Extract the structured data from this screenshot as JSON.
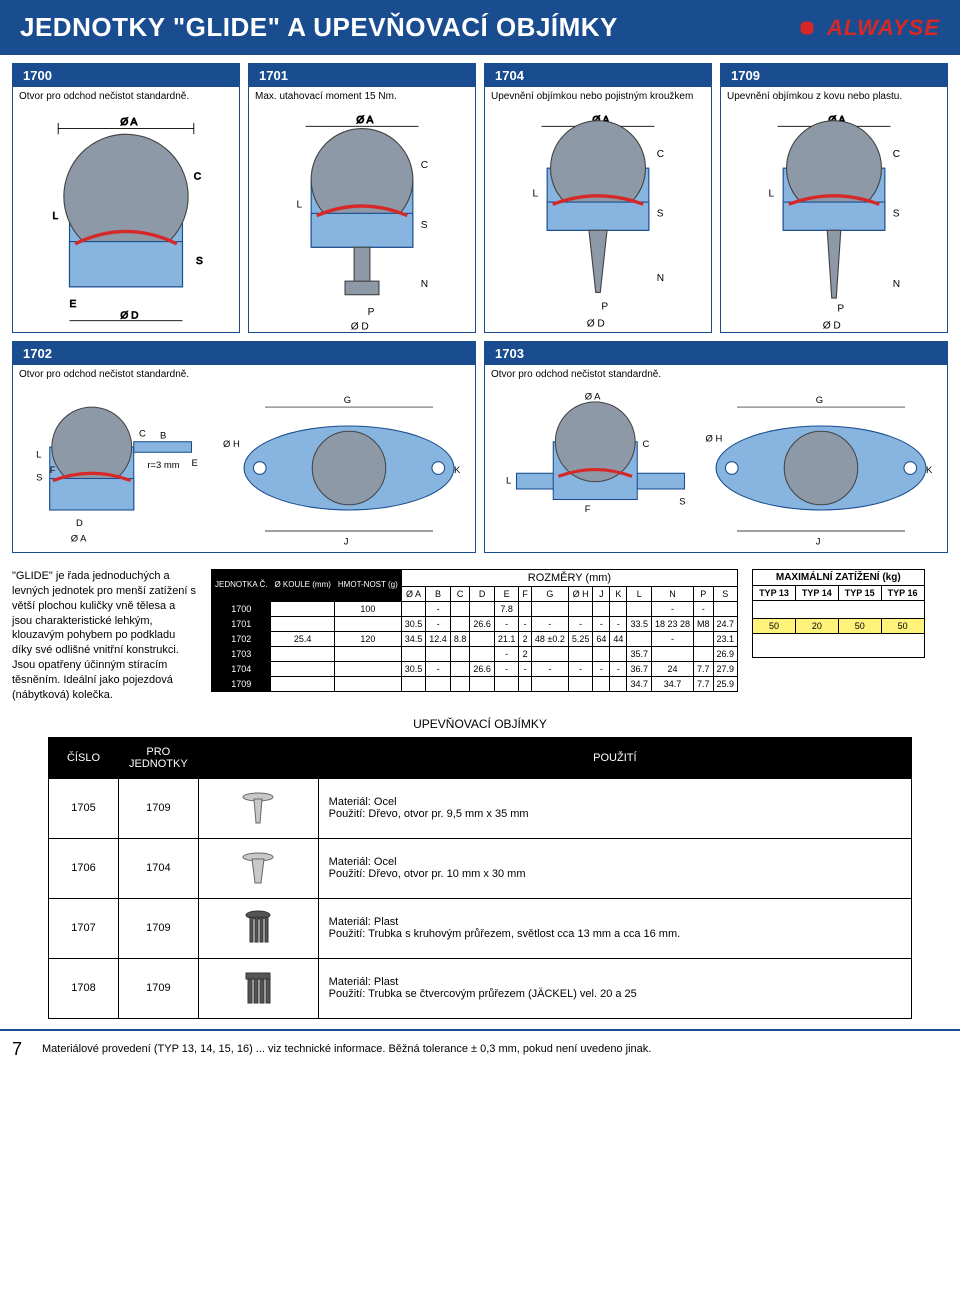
{
  "header": {
    "title": "JEDNOTKY \"GLIDE\" A UPEVŇOVACÍ OBJÍMKY",
    "brand": "ALWAYSE"
  },
  "drawings": {
    "d1700": {
      "num": "1700",
      "desc": "Otvor pro odchod nečistot standardně."
    },
    "d1701": {
      "num": "1701",
      "desc": "Max. utahovací moment 15 Nm."
    },
    "d1704": {
      "num": "1704",
      "desc": "Upevnění objímkou nebo pojistným kroužkem"
    },
    "d1709": {
      "num": "1709",
      "desc": "Upevnění objímkou z kovu nebo plastu."
    },
    "d1702": {
      "num": "1702",
      "desc": "Otvor pro odchod nečistot standardně."
    },
    "d1703": {
      "num": "1703",
      "desc": "Otvor pro odchod nečistot standardně."
    }
  },
  "intro": {
    "text": "\"GLIDE\" je řada jednoduchých a levných jednotek pro menší zatížení s větší plochou kuličky vně tělesa a jsou charakteristické lehkým, klouzavým pohybem po podkladu díky své odlišné vnitřní konstrukci. Jsou opatřeny účinným stíracím těsněním. Ideální jako pojezdová (nábytková) kolečka."
  },
  "dim_table": {
    "head_unit": "JEDNOTKA Č.",
    "head_koule": "Ø KOULE (mm)",
    "head_hmot": "HMOT-NOST (g)",
    "head_rozm": "ROZMĚRY (mm)",
    "cols": [
      "Ø A",
      "B",
      "C",
      "D",
      "E",
      "F",
      "G",
      "Ø H",
      "J",
      "K",
      "L",
      "N",
      "P",
      "S"
    ],
    "rows": [
      {
        "unit": "1700",
        "koule": "",
        "hmot": "100",
        "vals": [
          "",
          "-",
          "",
          "",
          "7.8",
          "",
          "",
          "",
          "",
          "",
          "",
          "-",
          "-",
          ""
        ]
      },
      {
        "unit": "1701",
        "koule": "",
        "hmot": "",
        "vals": [
          "30.5",
          "-",
          "",
          "26.6",
          "-",
          "-",
          "-",
          "-",
          "-",
          "-",
          "33.5",
          "18 23 28",
          "M8",
          "24.7"
        ]
      },
      {
        "unit": "1702",
        "koule": "25.4",
        "hmot": "120",
        "vals": [
          "34.5",
          "12.4",
          "8.8",
          "",
          "21.1",
          "2",
          "48 ±0.2",
          "5.25",
          "64",
          "44",
          "",
          "-",
          "",
          "23.1"
        ]
      },
      {
        "unit": "1703",
        "koule": "",
        "hmot": "",
        "vals": [
          "",
          "",
          "",
          "",
          "-",
          "2",
          "",
          "",
          "",
          "",
          "35.7",
          "",
          "",
          "26.9"
        ]
      },
      {
        "unit": "1704",
        "koule": "",
        "hmot": "",
        "vals": [
          "30.5",
          "-",
          "",
          "26.6",
          "-",
          "-",
          "-",
          "-",
          "-",
          "-",
          "36.7",
          "24",
          "7.7",
          "27.9"
        ]
      },
      {
        "unit": "1709",
        "koule": "",
        "hmot": "",
        "vals": [
          "",
          "",
          "",
          "",
          "",
          "",
          "",
          "",
          "",
          "",
          "34.7",
          "34.7",
          "7.7",
          "25.9"
        ]
      }
    ]
  },
  "load_table": {
    "head": "MAXIMÁLNÍ ZATÍŽENÍ (kg)",
    "cols": [
      "TYP 13",
      "TYP 14",
      "TYP 15",
      "TYP 16"
    ],
    "vals": [
      "50",
      "20",
      "50",
      "50"
    ]
  },
  "clamps": {
    "heading": "UPEVŇOVACÍ OBJÍMKY",
    "th_num": "ČÍSLO",
    "th_unit": "PRO JEDNOTKY",
    "th_use": "POUŽITÍ",
    "rows": [
      {
        "num": "1705",
        "unit": "1709",
        "mat": "Materiál: Ocel",
        "use": "Použití:   Dřevo, otvor pr. 9,5 mm x 35 mm"
      },
      {
        "num": "1706",
        "unit": "1704",
        "mat": "Materiál: Ocel",
        "use": "Použití:   Dřevo, otvor pr. 10 mm x 30 mm"
      },
      {
        "num": "1707",
        "unit": "1709",
        "mat": "Materiál: Plast",
        "use": "Použití:   Trubka s kruhovým průřezem, světlost cca 13 mm a cca 16 mm."
      },
      {
        "num": "1708",
        "unit": "1709",
        "mat": "Materiál: Plast",
        "use": "Použití:   Trubka se čtvercovým průřezem (JÄCKEL) vel. 20 a 25"
      }
    ]
  },
  "footer": {
    "page": "7",
    "text": "Materiálové provedení (TYP 13, 14, 15, 16) ... viz technické informace. Běžná tolerance ± 0,3 mm, pokud není uvedeno jinak."
  },
  "colors": {
    "blue": "#1a4d8f",
    "red": "#d72828",
    "yellow": "#fff27a",
    "lightblue": "#87b5e0",
    "steelgrey": "#8e99a8"
  }
}
